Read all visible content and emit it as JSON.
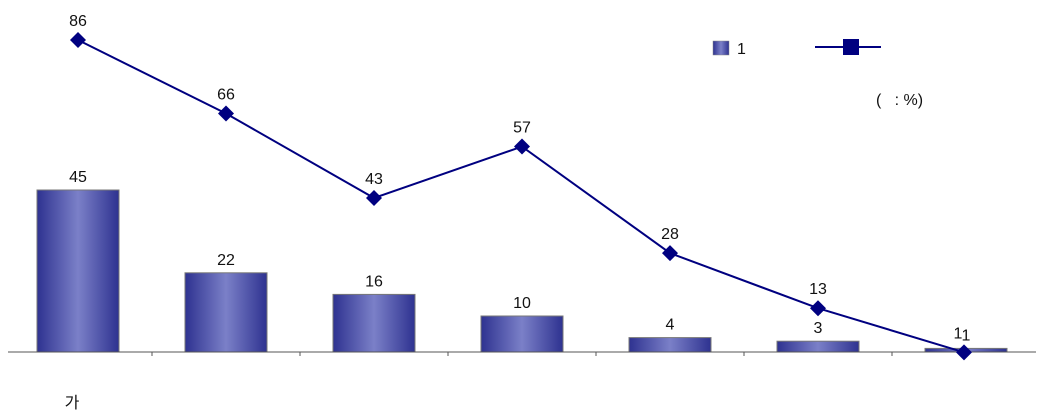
{
  "chart_data": {
    "type": "bar",
    "categories": [
      "가",
      "",
      "",
      "",
      "",
      "",
      ""
    ],
    "series": [
      {
        "name": "1",
        "type": "bar",
        "values": [
          45,
          22,
          16,
          10,
          4,
          3,
          1
        ]
      },
      {
        "type": "line",
        "values": [
          86,
          66,
          43,
          57,
          28,
          13,
          1
        ]
      }
    ],
    "unit_note": "(   : %)",
    "legend_position": "top-right",
    "grid": false,
    "colors": {
      "bar_fill": "#4a4fa8",
      "bar_highlight": "#7b80c8",
      "line": "#000080",
      "marker": "#000080"
    }
  }
}
